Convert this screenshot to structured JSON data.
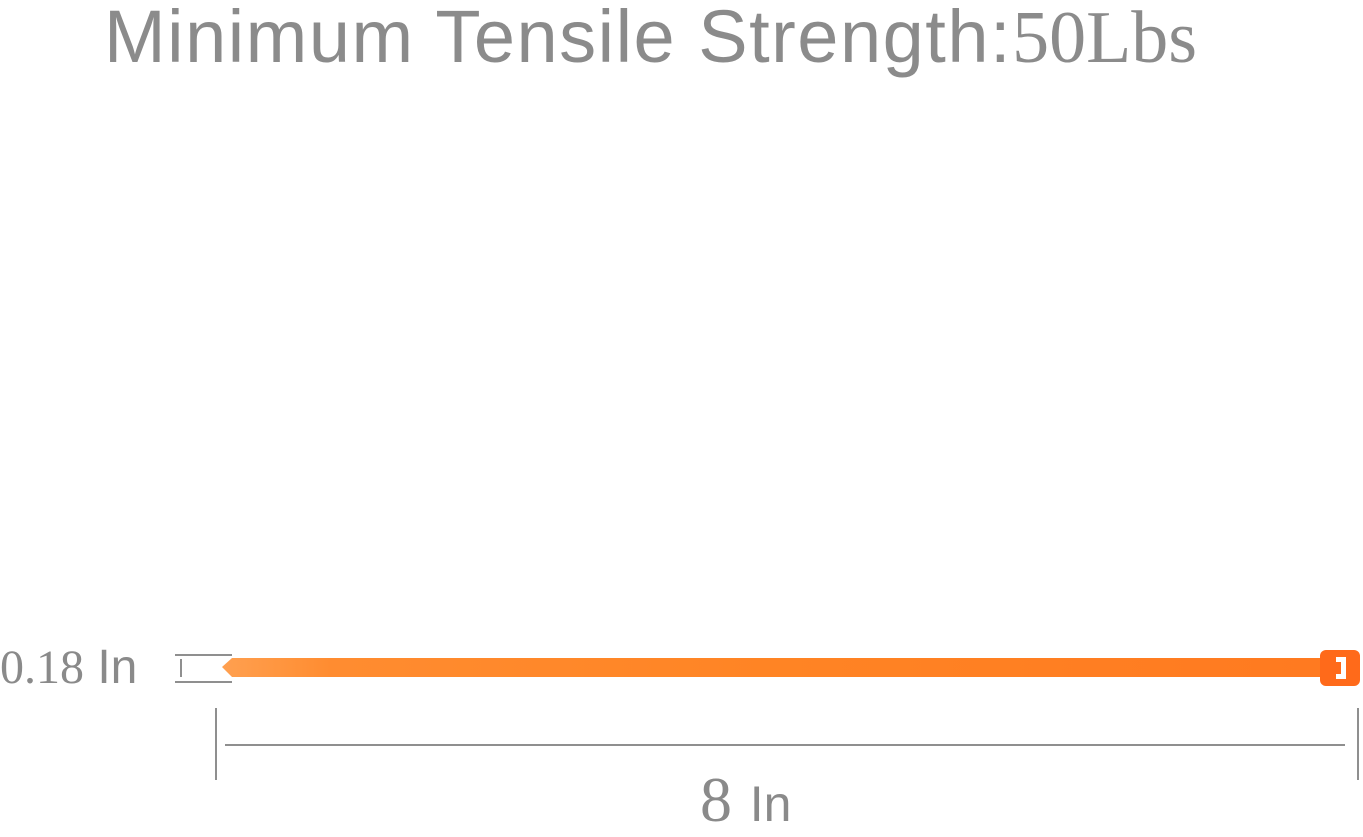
{
  "title": {
    "label": "Minimum Tensile Strength:",
    "value": "50Lbs"
  },
  "width_dimension": {
    "value": "0.18",
    "unit": "In"
  },
  "length_dimension": {
    "value": "8",
    "unit": "In"
  },
  "colors": {
    "tie": "#ff8a2a",
    "tie_head": "#ff6a1a",
    "text": "#8a8a8a"
  }
}
